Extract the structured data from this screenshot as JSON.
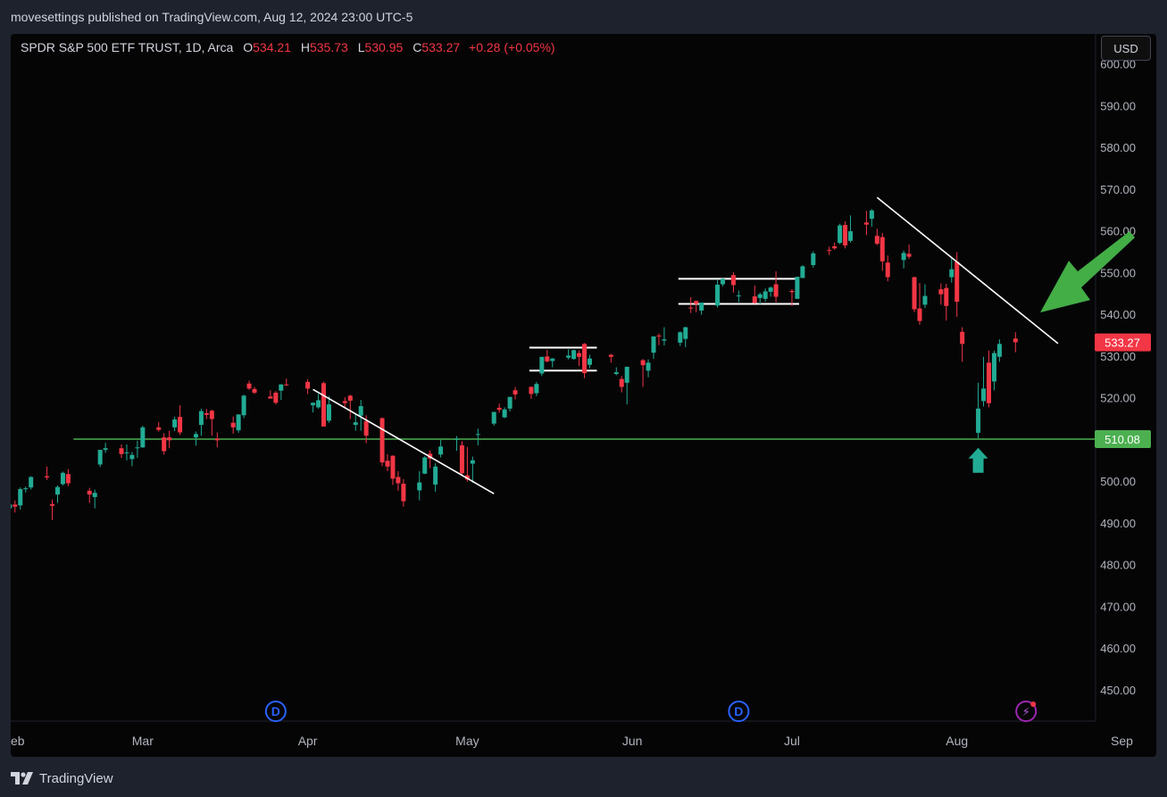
{
  "header": {
    "publisher": "movesettings published on TradingView.com, Aug 12, 2024 23:00 UTC-5"
  },
  "legend": {
    "symbol": "SPDR S&P 500 ETF TRUST, 1D, Arca",
    "open_key": "O",
    "open": "534.21",
    "high_key": "H",
    "high": "535.73",
    "low_key": "L",
    "low": "530.95",
    "close_key": "C",
    "close": "533.27",
    "change": "+0.28 (+0.05%)"
  },
  "currency_button": "USD",
  "footer": {
    "brand": "TradingView"
  },
  "colors": {
    "up": "#22ab94",
    "down": "#f23645",
    "support": "#4caf50",
    "annotation_arrow": "#43ad46",
    "event_marker": "#2962ff",
    "background": "#050506"
  },
  "chart_data": {
    "type": "candlestick",
    "y_axis": {
      "min": 445,
      "max": 605,
      "ticks": [
        "600.00",
        "590.00",
        "580.00",
        "570.00",
        "560.00",
        "550.00",
        "540.00",
        "530.00",
        "520.00",
        "510.00",
        "500.00",
        "490.00",
        "480.00",
        "470.00",
        "460.00",
        "450.00"
      ]
    },
    "x_axis": {
      "labels": [
        "eb",
        "Mar",
        "Apr",
        "May",
        "Jun",
        "Jul",
        "Aug",
        "Sep"
      ]
    },
    "price_labels": [
      {
        "text": "533.27",
        "value": 533.27,
        "color": "#f23645"
      },
      {
        "text": "510.08",
        "value": 510.08,
        "color": "#4caf50"
      }
    ],
    "support_level": 510.08,
    "event_markers": [
      {
        "label": "D",
        "date": "Mar 26"
      },
      {
        "label": "D",
        "date": "Jun 21"
      },
      {
        "label": "⚡",
        "date": "Aug 14"
      }
    ],
    "trendlines": [
      {
        "from": [
          "Apr 2",
          522
        ],
        "to": [
          "May 6",
          497
        ]
      },
      {
        "from": [
          "Jul 17",
          568
        ],
        "to": [
          "Aug 20",
          533
        ]
      }
    ],
    "ranges": [
      {
        "from": "May 14",
        "to": "May 24",
        "top": 532,
        "bottom": 526.5
      },
      {
        "from": "Jun 11",
        "to": "Jul 1",
        "top": 548.5,
        "bottom": 542.5
      }
    ],
    "arrows": [
      {
        "kind": "pointer",
        "direction": "down-left",
        "near": [
          "Aug 19",
          540
        ]
      },
      {
        "kind": "up",
        "at": [
          "Aug 5",
          505
        ]
      }
    ],
    "candles": [
      [
        "Feb 5",
        493.5,
        494.8,
        492.9,
        494.4
      ],
      [
        "Feb 6",
        494.4,
        495.4,
        492.5,
        493.9
      ],
      [
        "Feb 7",
        494.2,
        498.5,
        493.2,
        498.1
      ],
      [
        "Feb 8",
        498.1,
        498.7,
        497.3,
        498.3
      ],
      [
        "Feb 9",
        498.5,
        501.2,
        498.0,
        501.0
      ],
      [
        "Feb 12",
        501.2,
        503.5,
        500.3,
        500.9
      ],
      [
        "Feb 13",
        494.5,
        495.6,
        490.7,
        494.1
      ],
      [
        "Feb 14",
        496.8,
        499.0,
        494.8,
        498.6
      ],
      [
        "Feb 15",
        499.3,
        502.3,
        499.0,
        502.0
      ],
      [
        "Feb 16",
        501.7,
        502.9,
        498.8,
        499.5
      ],
      [
        "Feb 20",
        497.7,
        498.4,
        494.8,
        496.8
      ],
      [
        "Feb 21",
        496.2,
        498.0,
        493.5,
        497.2
      ],
      [
        "Feb 22",
        504.0,
        507.5,
        503.4,
        507.5
      ],
      [
        "Feb 23",
        507.5,
        509.2,
        506.8,
        507.9
      ],
      [
        "Feb 26",
        507.9,
        508.8,
        505.6,
        506.5
      ],
      [
        "Feb 27",
        506.7,
        508.8,
        505.0,
        506.9
      ],
      [
        "Feb 28",
        505.3,
        507.0,
        503.6,
        506.3
      ],
      [
        "Feb 29",
        508.0,
        509.7,
        505.6,
        508.1
      ],
      [
        "Mar 1",
        508.1,
        513.3,
        508.0,
        512.9
      ],
      [
        "Mar 4",
        512.9,
        514.2,
        511.9,
        512.3
      ],
      [
        "Mar 5",
        510.5,
        511.5,
        506.4,
        507.2
      ],
      [
        "Mar 6",
        510.5,
        512.1,
        507.9,
        509.8
      ],
      [
        "Mar 7",
        512.9,
        515.5,
        512.0,
        514.8
      ],
      [
        "Mar 8",
        515.4,
        518.2,
        511.1,
        511.7
      ],
      [
        "Mar 11",
        510.5,
        511.9,
        508.5,
        511.3
      ],
      [
        "Mar 12",
        513.5,
        517.4,
        510.9,
        516.8
      ],
      [
        "Mar 13",
        516.3,
        517.3,
        514.9,
        515.9
      ],
      [
        "Mar 14",
        516.9,
        517.1,
        510.9,
        514.9
      ],
      [
        "Mar 15",
        510.2,
        511.7,
        508.1,
        509.8
      ],
      [
        "Mar 18",
        514.0,
        515.5,
        511.4,
        512.9
      ],
      [
        "Mar 19",
        512.2,
        516.0,
        511.6,
        516.0
      ],
      [
        "Mar 20",
        515.8,
        520.7,
        515.1,
        520.5
      ],
      [
        "Mar 21",
        523.4,
        524.1,
        521.9,
        522.2
      ],
      [
        "Mar 22",
        522.1,
        522.6,
        520.9,
        521.2
      ],
      [
        "Mar 25",
        520.3,
        521.8,
        519.9,
        519.8
      ],
      [
        "Mar 26",
        521.2,
        521.6,
        518.4,
        518.8
      ],
      [
        "Mar 27",
        521.7,
        523.2,
        519.5,
        523.2
      ],
      [
        "Mar 28",
        523.2,
        524.6,
        522.8,
        523.1
      ],
      [
        "Apr 1",
        523.8,
        524.4,
        520.9,
        522.2
      ],
      [
        "Apr 2",
        518.2,
        518.9,
        516.5,
        518.8
      ],
      [
        "Apr 3",
        517.7,
        520.9,
        517.4,
        519.4
      ],
      [
        "Apr 4",
        523.5,
        523.9,
        513.1,
        513.1
      ],
      [
        "Apr 5",
        514.5,
        520.4,
        514.0,
        518.4
      ],
      [
        "Apr 8",
        519.2,
        520.1,
        517.8,
        518.7
      ],
      [
        "Apr 9",
        520.5,
        520.7,
        514.9,
        519.3
      ],
      [
        "Apr 10",
        513.5,
        516.2,
        512.1,
        514.1
      ],
      [
        "Apr 11",
        515.7,
        519.5,
        512.1,
        518.0
      ],
      [
        "Apr 12",
        514.4,
        515.8,
        509.1,
        510.9
      ],
      [
        "Apr 15",
        515.1,
        515.3,
        503.6,
        504.5
      ],
      [
        "Apr 16",
        504.9,
        506.5,
        502.4,
        503.5
      ],
      [
        "Apr 17",
        506.1,
        506.2,
        499.1,
        500.6
      ],
      [
        "Apr 18",
        501.0,
        502.4,
        497.7,
        499.5
      ],
      [
        "Apr 19",
        499.4,
        500.5,
        493.9,
        495.2
      ],
      [
        "Apr 22",
        497.8,
        502.4,
        495.4,
        499.7
      ],
      [
        "Apr 23",
        501.8,
        506.0,
        501.7,
        505.7
      ],
      [
        "Apr 24",
        506.6,
        507.4,
        503.1,
        505.4
      ],
      [
        "Apr 25",
        499.2,
        504.3,
        497.5,
        503.5
      ],
      [
        "Apr 26",
        506.4,
        509.9,
        505.7,
        508.3
      ],
      [
        "Apr 29",
        510.1,
        510.8,
        507.3,
        510.1
      ],
      [
        "Apr 30",
        508.6,
        509.6,
        501.2,
        501.9
      ],
      [
        "May 1",
        501.4,
        508.2,
        499.9,
        500.4
      ],
      [
        "May 2",
        504.2,
        505.9,
        499.6,
        505.0
      ],
      [
        "May 3",
        511.2,
        512.6,
        508.6,
        511.3
      ],
      [
        "May 6",
        513.8,
        516.6,
        513.3,
        516.6
      ],
      [
        "May 7",
        517.6,
        518.6,
        516.4,
        517.1
      ],
      [
        "May 8",
        515.3,
        517.7,
        515.1,
        517.2
      ],
      [
        "May 9",
        517.4,
        520.2,
        516.7,
        520.2
      ],
      [
        "May 10",
        521.8,
        522.6,
        519.6,
        520.8
      ],
      [
        "May 13",
        522.6,
        522.7,
        519.7,
        520.9
      ],
      [
        "May 14",
        521.1,
        523.8,
        520.4,
        523.3
      ],
      [
        "May 15",
        525.8,
        529.7,
        525.2,
        529.8
      ],
      [
        "May 16",
        529.9,
        531.5,
        528.5,
        528.7
      ],
      [
        "May 17",
        528.8,
        529.5,
        527.3,
        529.4
      ],
      [
        "May 20",
        529.6,
        531.6,
        529.2,
        530.1
      ],
      [
        "May 21",
        529.3,
        531.5,
        529.1,
        531.4
      ],
      [
        "May 22",
        530.7,
        531.4,
        527.6,
        529.8
      ],
      [
        "May 23",
        532.9,
        533.1,
        524.7,
        525.9
      ],
      [
        "May 24",
        527.9,
        530.3,
        527.1,
        529.4
      ],
      [
        "May 28",
        530.3,
        530.5,
        528.4,
        529.8
      ],
      [
        "May 29",
        525.7,
        527.3,
        525.4,
        526.1
      ],
      [
        "May 30",
        524.5,
        525.2,
        521.3,
        522.6
      ],
      [
        "May 31",
        523.6,
        527.5,
        518.4,
        527.4
      ],
      [
        "Jun 3",
        529.0,
        529.3,
        522.6,
        527.8
      ],
      [
        "Jun 4",
        526.5,
        529.2,
        524.9,
        528.4
      ],
      [
        "Jun 5",
        530.8,
        534.7,
        529.3,
        534.7
      ],
      [
        "Jun 6",
        534.9,
        535.4,
        532.6,
        534.7
      ],
      [
        "Jun 7",
        533.7,
        536.9,
        532.5,
        534.0
      ],
      [
        "Jun 10",
        533.2,
        535.9,
        532.4,
        535.7
      ],
      [
        "Jun 11",
        534.1,
        537.0,
        532.1,
        536.9
      ],
      [
        "Jun 12",
        541.6,
        544.1,
        540.3,
        541.4
      ],
      [
        "Jun 13",
        543.2,
        543.3,
        540.5,
        542.5
      ],
      [
        "Jun 14",
        540.9,
        542.8,
        539.9,
        542.8
      ],
      [
        "Jun 17",
        542.1,
        548.4,
        541.6,
        547.1
      ],
      [
        "Jun 18",
        547.2,
        548.6,
        546.7,
        548.5
      ],
      [
        "Jun 20",
        549.4,
        550.1,
        545.2,
        547.0
      ],
      [
        "Jun 21",
        544.4,
        545.7,
        542.9,
        544.5
      ],
      [
        "Jun 24",
        544.3,
        546.9,
        542.6,
        542.7
      ],
      [
        "Jun 25",
        543.9,
        545.2,
        542.4,
        544.8
      ],
      [
        "Jun 26",
        543.7,
        546.2,
        543.0,
        545.5
      ],
      [
        "Jun 27",
        545.4,
        546.7,
        544.2,
        546.4
      ],
      [
        "Jun 28",
        547.2,
        550.3,
        542.9,
        544.2
      ],
      [
        "Jul 1",
        545.6,
        546.0,
        542.0,
        545.3
      ],
      [
        "Jul 2",
        543.7,
        549.0,
        543.7,
        549.0
      ],
      [
        "Jul 3",
        548.7,
        551.8,
        548.7,
        551.5
      ],
      [
        "Jul 5",
        551.8,
        555.1,
        551.2,
        554.6
      ],
      [
        "Jul 8",
        555.4,
        556.2,
        554.2,
        555.3
      ],
      [
        "Jul 9",
        556.3,
        557.2,
        555.5,
        555.8
      ],
      [
        "Jul 10",
        557.1,
        561.7,
        556.8,
        561.3
      ],
      [
        "Jul 11",
        561.4,
        562.3,
        555.8,
        556.5
      ],
      [
        "Jul 12",
        557.6,
        563.7,
        557.2,
        559.9
      ],
      [
        "Jul 15",
        562.0,
        564.8,
        559.0,
        561.5
      ],
      [
        "Jul 16",
        562.9,
        565.2,
        561.0,
        564.9
      ],
      [
        "Jul 17",
        558.8,
        560.5,
        556.6,
        556.9
      ],
      [
        "Jul 18",
        558.5,
        559.5,
        550.4,
        552.7
      ],
      [
        "Jul 19",
        552.4,
        554.1,
        547.9,
        548.9
      ],
      [
        "Jul 22",
        553.0,
        555.3,
        551.0,
        554.7
      ],
      [
        "Jul 23",
        554.5,
        556.7,
        553.3,
        553.8
      ],
      [
        "Jul 24",
        548.9,
        549.0,
        540.5,
        541.2
      ],
      [
        "Jul 25",
        541.4,
        547.5,
        537.5,
        538.4
      ],
      [
        "Jul 26",
        542.3,
        547.2,
        541.5,
        544.4
      ],
      [
        "Jul 29",
        546.0,
        547.4,
        542.3,
        544.8
      ],
      [
        "Jul 30",
        546.3,
        547.3,
        538.5,
        542.0
      ],
      [
        "Jul 31",
        548.9,
        553.5,
        547.6,
        550.8
      ],
      [
        "Aug 1",
        552.6,
        554.9,
        539.4,
        543.0
      ],
      [
        "Aug 2",
        535.8,
        536.9,
        528.6,
        532.9
      ],
      [
        "Aug 5",
        511.6,
        523.6,
        510.3,
        517.4
      ],
      [
        "Aug 6",
        519.2,
        529.8,
        517.9,
        522.2
      ],
      [
        "Aug 7",
        528.4,
        531.3,
        517.7,
        518.7
      ],
      [
        "Aug 8",
        523.9,
        531.3,
        521.8,
        530.7
      ],
      [
        "Aug 9",
        529.8,
        534.0,
        528.6,
        532.9
      ],
      [
        "Aug 12",
        534.2,
        535.7,
        530.9,
        533.3
      ]
    ]
  }
}
